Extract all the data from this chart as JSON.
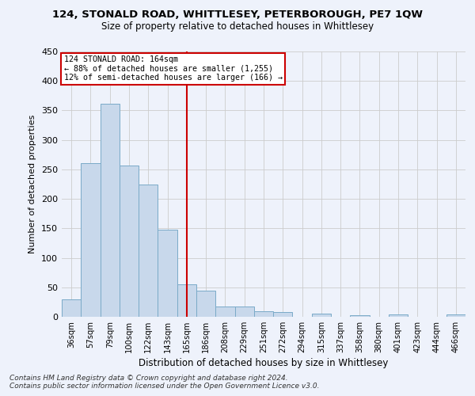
{
  "title": "124, STONALD ROAD, WHITTLESEY, PETERBOROUGH, PE7 1QW",
  "subtitle": "Size of property relative to detached houses in Whittlesey",
  "xlabel": "Distribution of detached houses by size in Whittlesey",
  "ylabel": "Number of detached properties",
  "bar_color": "#c8d8eb",
  "bar_edge_color": "#7aaac8",
  "categories": [
    "36sqm",
    "57sqm",
    "79sqm",
    "100sqm",
    "122sqm",
    "143sqm",
    "165sqm",
    "186sqm",
    "208sqm",
    "229sqm",
    "251sqm",
    "272sqm",
    "294sqm",
    "315sqm",
    "337sqm",
    "358sqm",
    "380sqm",
    "401sqm",
    "423sqm",
    "444sqm",
    "466sqm"
  ],
  "values": [
    30,
    261,
    362,
    257,
    225,
    148,
    55,
    45,
    18,
    18,
    10,
    8,
    0,
    6,
    0,
    3,
    0,
    4,
    0,
    0,
    4
  ],
  "reference_line_x": 6,
  "annotation_text_line1": "124 STONALD ROAD: 164sqm",
  "annotation_text_line2": "← 88% of detached houses are smaller (1,255)",
  "annotation_text_line3": "12% of semi-detached houses are larger (166) →",
  "annotation_box_color": "#ffffff",
  "annotation_box_edge_color": "#cc0000",
  "ref_line_color": "#cc0000",
  "grid_color": "#cccccc",
  "background_color": "#eef2fb",
  "footer_line1": "Contains HM Land Registry data © Crown copyright and database right 2024.",
  "footer_line2": "Contains public sector information licensed under the Open Government Licence v3.0.",
  "ylim": [
    0,
    450
  ],
  "yticks": [
    0,
    50,
    100,
    150,
    200,
    250,
    300,
    350,
    400,
    450
  ]
}
